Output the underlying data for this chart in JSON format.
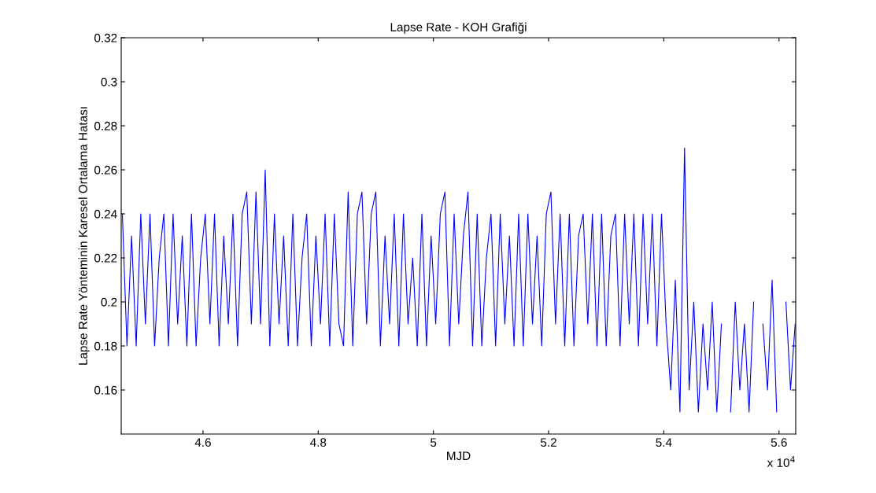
{
  "chart_data": {
    "type": "line",
    "title": "Lapse Rate - KOH Grafiği",
    "xlabel": "MJD",
    "ylabel": "Lapse Rate Yönteminin Karesel Ortalama Hatası",
    "annotations": [
      "x 10$^{4}$"
    ],
    "xlim": [
      4.458,
      5.629
    ],
    "ylim": [
      0.14,
      0.32
    ],
    "xticks": [
      4.6,
      4.8,
      5,
      5.2,
      5.4,
      5.6
    ],
    "yticks": [
      0.16,
      0.18,
      0.2,
      0.22,
      0.24,
      0.26,
      0.28,
      0.3,
      0.32
    ],
    "grid": false,
    "legend": false,
    "marker": "none",
    "line_style": "solid",
    "series": [
      {
        "color": "#0000ff",
        "x": [
          4.46,
          4.468,
          4.476,
          4.484,
          4.492,
          4.5,
          4.508,
          4.516,
          4.524,
          4.532,
          4.54,
          4.548,
          4.556,
          4.564,
          4.572,
          4.58,
          4.588,
          4.596,
          4.604,
          4.612,
          4.62,
          4.628,
          4.636,
          4.644,
          4.652,
          4.66,
          4.668,
          4.676,
          4.684,
          4.692,
          4.7,
          4.708,
          4.716,
          4.724,
          4.732,
          4.74,
          4.748,
          4.756,
          4.764,
          4.772,
          4.78,
          4.788,
          4.796,
          4.804,
          4.812,
          4.82,
          4.828,
          4.836,
          4.844,
          4.852,
          4.86,
          4.868,
          4.876,
          4.884,
          4.892,
          4.9,
          4.908,
          4.916,
          4.924,
          4.932,
          4.94,
          4.948,
          4.956,
          4.964,
          4.972,
          4.98,
          4.988,
          4.996,
          5.004,
          5.012,
          5.02,
          5.028,
          5.036,
          5.044,
          5.052,
          5.06,
          5.068,
          5.076,
          5.084,
          5.092,
          5.1,
          5.108,
          5.116,
          5.124,
          5.132,
          5.14,
          5.148,
          5.156,
          5.164,
          5.172,
          5.18,
          5.188,
          5.196,
          5.204,
          5.212,
          5.22,
          5.228,
          5.236,
          5.244,
          5.252,
          5.26,
          5.268,
          5.276,
          5.284,
          5.292,
          5.3,
          5.308,
          5.316,
          5.324,
          5.332,
          5.34,
          5.348,
          5.356,
          5.364,
          5.372,
          5.38,
          5.388,
          5.396,
          5.404,
          5.412,
          5.42,
          5.428,
          5.436,
          5.444,
          5.452,
          5.46,
          5.468,
          5.476,
          5.484,
          5.492,
          5.5,
          5.508,
          5.516,
          5.524,
          5.532,
          5.54,
          5.548,
          5.556,
          5.564,
          5.572,
          5.58,
          5.588,
          5.596,
          5.604,
          5.612,
          5.62,
          5.628
        ],
        "values": [
          0.24,
          0.18,
          0.23,
          0.18,
          0.24,
          0.19,
          0.24,
          0.18,
          0.22,
          0.24,
          0.18,
          0.24,
          0.19,
          0.23,
          0.18,
          0.24,
          0.18,
          0.22,
          0.24,
          0.19,
          0.24,
          0.18,
          0.23,
          0.19,
          0.24,
          0.18,
          0.24,
          0.25,
          0.19,
          0.25,
          0.19,
          0.26,
          0.18,
          0.24,
          0.19,
          0.23,
          0.18,
          0.24,
          0.18,
          0.22,
          0.24,
          0.18,
          0.23,
          0.19,
          0.24,
          0.18,
          0.24,
          0.19,
          0.18,
          0.25,
          0.18,
          0.24,
          0.25,
          0.19,
          0.24,
          0.25,
          0.18,
          0.23,
          0.19,
          0.24,
          0.18,
          0.24,
          0.19,
          0.22,
          0.18,
          0.24,
          0.18,
          0.23,
          0.19,
          0.24,
          0.25,
          0.18,
          0.24,
          0.19,
          0.23,
          0.25,
          0.18,
          0.24,
          0.18,
          0.22,
          0.24,
          0.18,
          0.24,
          0.19,
          0.23,
          0.18,
          0.24,
          0.18,
          0.24,
          0.19,
          0.23,
          0.18,
          0.24,
          0.25,
          0.19,
          0.24,
          0.18,
          0.24,
          0.18,
          0.23,
          0.24,
          0.19,
          0.24,
          0.18,
          0.24,
          0.18,
          0.23,
          0.24,
          0.18,
          0.24,
          0.19,
          0.24,
          0.18,
          0.24,
          0.19,
          0.24,
          0.18,
          0.24,
          0.19,
          0.16,
          0.21,
          0.15,
          0.27,
          0.16,
          0.2,
          0.15,
          0.19,
          0.16,
          0.2,
          0.15,
          0.19,
          null,
          0.15,
          0.2,
          0.16,
          0.19,
          0.15,
          0.2,
          null,
          0.19,
          0.16,
          0.21,
          0.15,
          null,
          0.2,
          0.16,
          0.19
        ]
      }
    ]
  }
}
